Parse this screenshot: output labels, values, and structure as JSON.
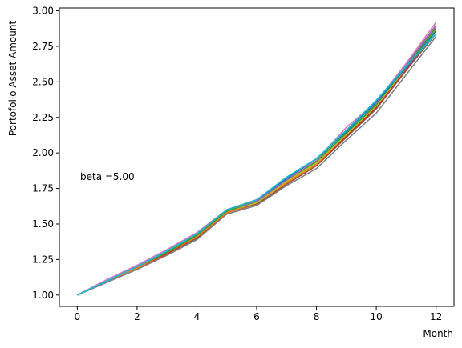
{
  "chart_data": {
    "type": "line",
    "title": "",
    "xlabel": "Month",
    "ylabel": "Portofolio Asset Amount",
    "annotation": "beta =5.00",
    "xlim": [
      -0.6,
      12.6
    ],
    "ylim": [
      0.92,
      3.02
    ],
    "xticks": [
      0,
      2,
      4,
      6,
      8,
      10,
      12
    ],
    "xtick_labels": [
      "0",
      "2",
      "4",
      "6",
      "8",
      "10",
      "12"
    ],
    "yticks": [
      1.0,
      1.25,
      1.5,
      1.75,
      2.0,
      2.25,
      2.5,
      2.75,
      3.0
    ],
    "ytick_labels": [
      "1.00",
      "1.25",
      "1.50",
      "1.75",
      "2.00",
      "2.25",
      "2.50",
      "2.75",
      "3.00"
    ],
    "grid": false,
    "legend": "none",
    "x": [
      0,
      1,
      2,
      3,
      4,
      5,
      6,
      7,
      8,
      9,
      10,
      11,
      12
    ],
    "series": [
      {
        "color": "#7f7f7f",
        "values": [
          1.0,
          1.09,
          1.18,
          1.28,
          1.39,
          1.57,
          1.63,
          1.77,
          1.89,
          2.09,
          2.28,
          2.55,
          2.82
        ]
      },
      {
        "color": "#8c564b",
        "values": [
          1.0,
          1.1,
          1.19,
          1.29,
          1.4,
          1.58,
          1.64,
          1.78,
          1.91,
          2.11,
          2.31,
          2.58,
          2.84
        ]
      },
      {
        "color": "#d62728",
        "values": [
          1.0,
          1.1,
          1.19,
          1.29,
          1.41,
          1.58,
          1.65,
          1.79,
          1.92,
          2.12,
          2.32,
          2.59,
          2.86
        ]
      },
      {
        "color": "#ff7f0e",
        "values": [
          1.0,
          1.1,
          1.19,
          1.3,
          1.41,
          1.58,
          1.65,
          1.79,
          1.92,
          2.13,
          2.33,
          2.6,
          2.89
        ]
      },
      {
        "color": "#bcbd22",
        "values": [
          1.0,
          1.1,
          1.2,
          1.3,
          1.42,
          1.59,
          1.65,
          1.8,
          1.93,
          2.13,
          2.33,
          2.6,
          2.87
        ]
      },
      {
        "color": "#2ca02c",
        "values": [
          1.0,
          1.1,
          1.2,
          1.3,
          1.42,
          1.59,
          1.66,
          1.81,
          1.94,
          2.14,
          2.34,
          2.61,
          2.88
        ]
      },
      {
        "color": "#9467bd",
        "values": [
          1.0,
          1.1,
          1.2,
          1.31,
          1.43,
          1.6,
          1.66,
          1.81,
          1.95,
          2.16,
          2.35,
          2.62,
          2.9
        ]
      },
      {
        "color": "#e377c2",
        "values": [
          1.0,
          1.11,
          1.21,
          1.32,
          1.44,
          1.6,
          1.67,
          1.82,
          1.95,
          2.18,
          2.36,
          2.63,
          2.92
        ]
      },
      {
        "color": "#1f77b4",
        "values": [
          1.0,
          1.1,
          1.2,
          1.31,
          1.43,
          1.6,
          1.67,
          1.82,
          1.96,
          2.15,
          2.36,
          2.6,
          2.86
        ]
      },
      {
        "color": "#17becf",
        "values": [
          1.0,
          1.1,
          1.2,
          1.31,
          1.43,
          1.6,
          1.67,
          1.83,
          1.96,
          2.16,
          2.37,
          2.61,
          2.84
        ]
      }
    ]
  }
}
